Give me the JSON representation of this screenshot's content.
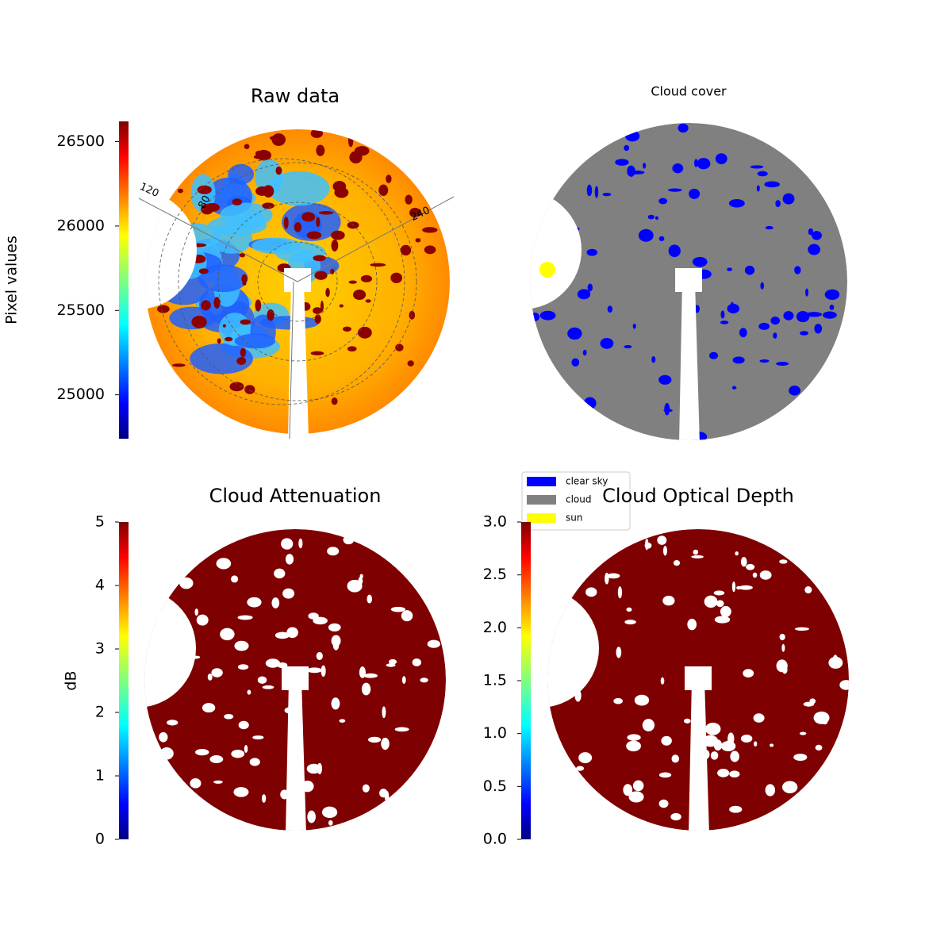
{
  "chart_data": [
    {
      "type": "image",
      "title": "Raw data",
      "colormap": "jet",
      "colorbar": {
        "label": "Pixel values",
        "lim": [
          24740,
          26620
        ],
        "ticks": [
          25000,
          25500,
          26000,
          26500
        ]
      },
      "annotations": [
        "120",
        "80",
        "240"
      ]
    },
    {
      "type": "image",
      "title": "Cloud cover",
      "legend": [
        {
          "name": "clear sky",
          "color": "#0000ff"
        },
        {
          "name": "cloud",
          "color": "#808080"
        },
        {
          "name": "sun",
          "color": "#ffff00"
        }
      ]
    },
    {
      "type": "image",
      "title": "Cloud Attenuation",
      "colormap": "jet",
      "colorbar": {
        "label": "dB",
        "lim": [
          0,
          5
        ],
        "ticks": [
          0,
          1,
          2,
          3,
          4,
          5
        ]
      }
    },
    {
      "type": "image",
      "title": "Cloud Optical Depth",
      "colormap": "jet",
      "colorbar": {
        "lim": [
          0,
          3
        ],
        "ticks": [
          {
            "value": 0,
            "label": "0.0"
          },
          {
            "value": 0.5,
            "label": "0.5"
          },
          {
            "value": 1,
            "label": "1.0"
          },
          {
            "value": 1.5,
            "label": "1.5"
          },
          {
            "value": 2,
            "label": "2.0"
          },
          {
            "value": 2.5,
            "label": "2.5"
          },
          {
            "value": 3,
            "label": "3.0"
          }
        ]
      }
    }
  ]
}
